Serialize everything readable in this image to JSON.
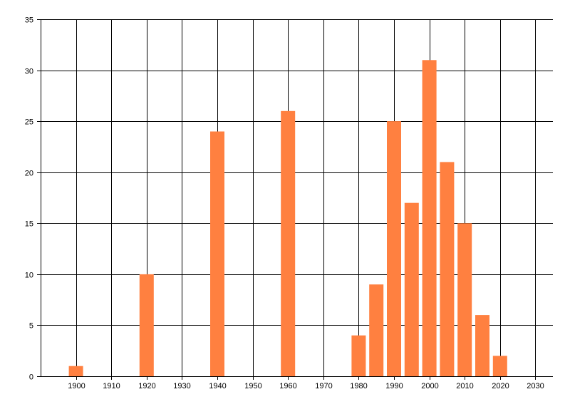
{
  "chart_data": {
    "type": "bar",
    "title": "",
    "xlabel": "",
    "ylabel": "",
    "x": [
      1900,
      1920,
      1940,
      1960,
      1980,
      1985,
      1990,
      1995,
      2000,
      2005,
      2010,
      2015,
      2020
    ],
    "values": [
      1,
      10,
      24,
      26,
      4,
      9,
      25,
      17,
      31,
      21,
      15,
      6,
      2
    ],
    "xlim": [
      1890,
      2035
    ],
    "ylim": [
      0,
      35
    ],
    "xticks": [
      1900,
      1910,
      1920,
      1930,
      1940,
      1950,
      1960,
      1970,
      1980,
      1990,
      2000,
      2010,
      2020,
      2030
    ],
    "yticks": [
      0,
      5,
      10,
      15,
      20,
      25,
      30,
      35
    ],
    "grid": true,
    "legend": "none"
  },
  "colors": {
    "bar": "#ff8040",
    "grid": "#000000",
    "axis": "#000000",
    "background": "#ffffff"
  }
}
